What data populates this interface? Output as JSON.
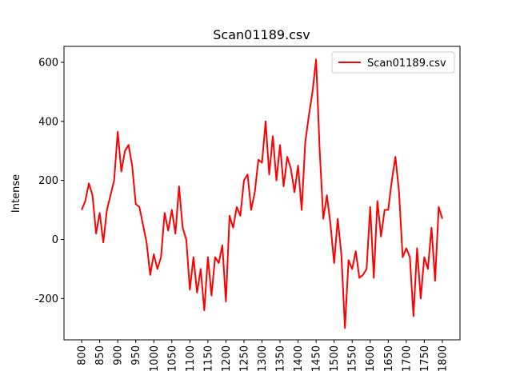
{
  "chart_data": {
    "type": "line",
    "title": "Scan01189.csv",
    "y_label": "Intense",
    "x": [
      800,
      810,
      820,
      830,
      840,
      850,
      860,
      870,
      880,
      890,
      900,
      910,
      920,
      930,
      940,
      950,
      960,
      970,
      980,
      990,
      1000,
      1010,
      1020,
      1030,
      1040,
      1050,
      1060,
      1070,
      1080,
      1090,
      1100,
      1110,
      1120,
      1130,
      1140,
      1150,
      1160,
      1170,
      1180,
      1190,
      1200,
      1210,
      1220,
      1230,
      1240,
      1250,
      1260,
      1270,
      1280,
      1290,
      1300,
      1310,
      1320,
      1330,
      1340,
      1350,
      1360,
      1370,
      1380,
      1390,
      1400,
      1410,
      1420,
      1430,
      1440,
      1450,
      1460,
      1470,
      1480,
      1490,
      1500,
      1510,
      1520,
      1530,
      1540,
      1550,
      1560,
      1570,
      1580,
      1590,
      1600,
      1610,
      1620,
      1630,
      1640,
      1650,
      1660,
      1670,
      1680,
      1690,
      1700,
      1710,
      1720,
      1730,
      1740,
      1750,
      1760,
      1770,
      1780,
      1790,
      1800
    ],
    "series": [
      {
        "name": "Scan01189.csv",
        "color": "#ff0000",
        "values": [
          100,
          130,
          190,
          150,
          20,
          90,
          -10,
          100,
          150,
          200,
          365,
          230,
          300,
          320,
          250,
          120,
          110,
          50,
          -10,
          -120,
          -50,
          -100,
          -60,
          90,
          30,
          100,
          20,
          180,
          40,
          0,
          -170,
          -60,
          -180,
          -100,
          -240,
          -60,
          -190,
          -60,
          -80,
          -20,
          -210,
          80,
          40,
          110,
          80,
          200,
          220,
          100,
          160,
          270,
          260,
          400,
          220,
          350,
          200,
          320,
          180,
          280,
          240,
          160,
          250,
          100,
          330,
          420,
          500,
          610,
          300,
          70,
          150,
          50,
          -80,
          70,
          -50,
          -300,
          -70,
          -100,
          -40,
          -130,
          -120,
          -100,
          110,
          -130,
          130,
          10,
          100,
          100,
          200,
          280,
          160,
          -60,
          -30,
          -60,
          -260,
          -30,
          -200,
          -60,
          -100,
          40,
          -140,
          110,
          70
        ]
      }
    ],
    "xlim": [
      751,
      1849
    ],
    "ylim": [
      -340,
      654
    ],
    "xticks": [
      800,
      850,
      900,
      950,
      1000,
      1050,
      1100,
      1150,
      1200,
      1250,
      1300,
      1350,
      1400,
      1450,
      1500,
      1550,
      1600,
      1650,
      1700,
      1750,
      1800
    ],
    "yticks": [
      -200,
      0,
      200,
      400,
      600
    ],
    "legend": "upper right"
  }
}
